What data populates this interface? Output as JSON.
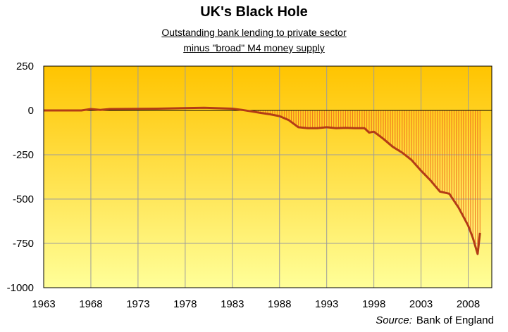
{
  "chart_data": {
    "type": "area",
    "title": "UK's Black Hole",
    "subtitle_lines": [
      "Outstanding bank lending to private sector",
      "minus \"broad\" M4 money supply"
    ],
    "source_label": "Source:",
    "source_value": "Bank of England",
    "xlabel": "",
    "ylabel": "",
    "x_ticks": [
      "1963",
      "1968",
      "1973",
      "1978",
      "1983",
      "1988",
      "1993",
      "1998",
      "2003",
      "2008"
    ],
    "y_ticks": [
      "250",
      "0",
      "-250",
      "-500",
      "-750",
      "-1000"
    ],
    "xlim": [
      1963,
      2010.5
    ],
    "ylim": [
      -1000,
      250
    ],
    "grid": true,
    "series": [
      {
        "x": [
          1963,
          1967,
          1968,
          1969,
          1970,
          1975,
          1980,
          1983,
          1984,
          1985,
          1986,
          1987,
          1988,
          1989,
          1990,
          1991,
          1992,
          1993,
          1994,
          1995,
          1996,
          1997,
          1997.5,
          1998,
          1999,
          2000,
          2001,
          2002,
          2003,
          2004,
          2005,
          2006,
          2007,
          2008,
          2008.5,
          2009,
          2009.25
        ],
        "y": [
          0,
          0,
          8,
          3,
          8,
          10,
          15,
          10,
          3,
          -5,
          -14,
          -22,
          -32,
          -55,
          -95,
          -100,
          -100,
          -95,
          -100,
          -98,
          -100,
          -100,
          -125,
          -120,
          -160,
          -205,
          -238,
          -280,
          -340,
          -395,
          -458,
          -470,
          -550,
          -650,
          -720,
          -810,
          -690
        ]
      }
    ],
    "colors": {
      "plot_top": "#ffc400",
      "plot_bottom": "#ffff99",
      "series_line": "#b33c16",
      "drop_lines": "#f07020",
      "grid": "#9c9c9c"
    }
  }
}
